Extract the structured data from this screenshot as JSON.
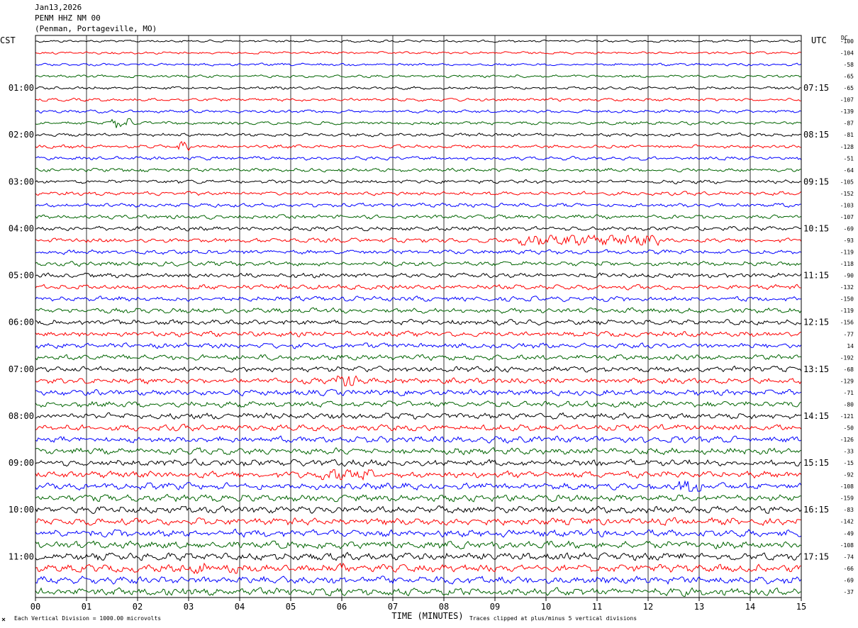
{
  "header": {
    "date": "Jan13,2026",
    "station": "PENM HHZ NM 00",
    "location": "(Penman, Portageville, MO)"
  },
  "chart_data": {
    "type": "line",
    "title": "Jan13,2026 PENM HHZ NM 00 (Penman, Portageville, MO)",
    "xlabel": "TIME (MINUTES)",
    "x_ticks": [
      "00",
      "01",
      "02",
      "03",
      "04",
      "05",
      "06",
      "07",
      "08",
      "09",
      "10",
      "11",
      "12",
      "13",
      "14",
      "15"
    ],
    "xlim": [
      0,
      15
    ],
    "left_axis_title": "CST",
    "right_axis_title": "UTC",
    "dc_title": "DC",
    "left_labels": [
      "01:00",
      "02:00",
      "03:00",
      "04:00",
      "05:00",
      "06:00",
      "07:00",
      "08:00",
      "09:00",
      "10:00",
      "11:00"
    ],
    "right_labels": [
      "07:15",
      "08:15",
      "09:15",
      "10:15",
      "11:15",
      "12:15",
      "13:15",
      "14:15",
      "15:15",
      "16:15",
      "17:15"
    ],
    "dc_offsets": [
      "-100",
      "-104",
      "-58",
      "-65",
      "-65",
      "-107",
      "-139",
      "-87",
      "-81",
      "-128",
      "-51",
      "-64",
      "-105",
      "-152",
      "-103",
      "-107",
      "-69",
      "-93",
      "-119",
      "-118",
      "-90",
      "-132",
      "-150",
      "-119",
      "-156",
      "-77",
      "14",
      "-192",
      "-68",
      "-129",
      "-71",
      "-80",
      "-121",
      "-50",
      "-126",
      "-33",
      "-15",
      "-92",
      "-108",
      "-159",
      "-83",
      "-142",
      "-49",
      "-108",
      "-74",
      "-66",
      "-69",
      "-37"
    ],
    "trace_colors": [
      "#000000",
      "#ff0000",
      "#0000ff",
      "#006400"
    ],
    "trace_interval_minutes": 15,
    "trace_count": 48,
    "footer_left": "Each Vertical Division = 1000.00 microvolts",
    "footer_right": "Traces clipped at plus/minus 5 vertical divisions",
    "grid": true
  }
}
